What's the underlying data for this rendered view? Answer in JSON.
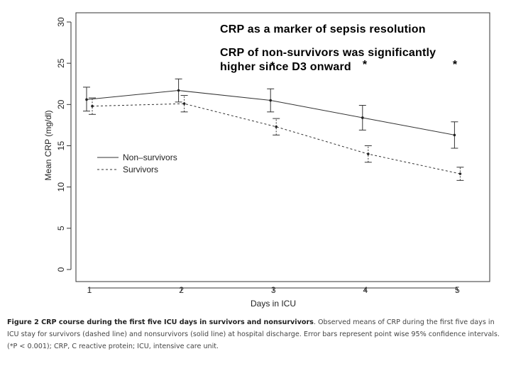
{
  "annotations": {
    "title": "CRP as a marker of sepsis resolution",
    "line1": "CRP of non-survivors was significantly",
    "line2": "higher since D3 onward"
  },
  "caption": {
    "bold": "Figure 2 CRP course during the first five ICU days in survivors and nonsurvivors",
    "text": ". Observed means of CRP during the first five days in ICU stay for survivors (dashed line) and nonsurvivors (solid line) at hospital discharge. Error bars represent point wise 95% confidence intervals. (*P < 0.001); CRP, C reactive protein; ICU, intensive care unit."
  },
  "chart_data": {
    "type": "line",
    "xlabel": "Days in ICU",
    "ylabel": "Mean CRP (mg/dl)",
    "x": [
      1,
      2,
      3,
      4,
      5
    ],
    "xticks": [
      "1",
      "2",
      "3",
      "4",
      "5"
    ],
    "yticks": [
      "0",
      "5",
      "10",
      "15",
      "20",
      "25",
      "30"
    ],
    "ylim": [
      0,
      30
    ],
    "xlim": [
      0.75,
      5.25
    ],
    "grid": false,
    "legend_position": "middle-left",
    "significance_marker": "*",
    "significance_days": [
      3,
      4,
      5
    ],
    "series": [
      {
        "name": "Non–survivors",
        "style": "solid",
        "values": [
          20.6,
          21.7,
          20.5,
          18.4,
          16.3
        ],
        "lower": [
          19.2,
          20.3,
          19.1,
          16.9,
          14.7
        ],
        "upper": [
          22.1,
          23.1,
          21.9,
          19.9,
          17.9
        ]
      },
      {
        "name": "Survivors",
        "style": "dashed",
        "values": [
          19.8,
          20.1,
          17.3,
          14.0,
          11.6
        ],
        "lower": [
          18.8,
          19.1,
          16.3,
          13.0,
          10.8
        ],
        "upper": [
          20.8,
          21.1,
          18.3,
          15.0,
          12.4
        ]
      }
    ]
  }
}
